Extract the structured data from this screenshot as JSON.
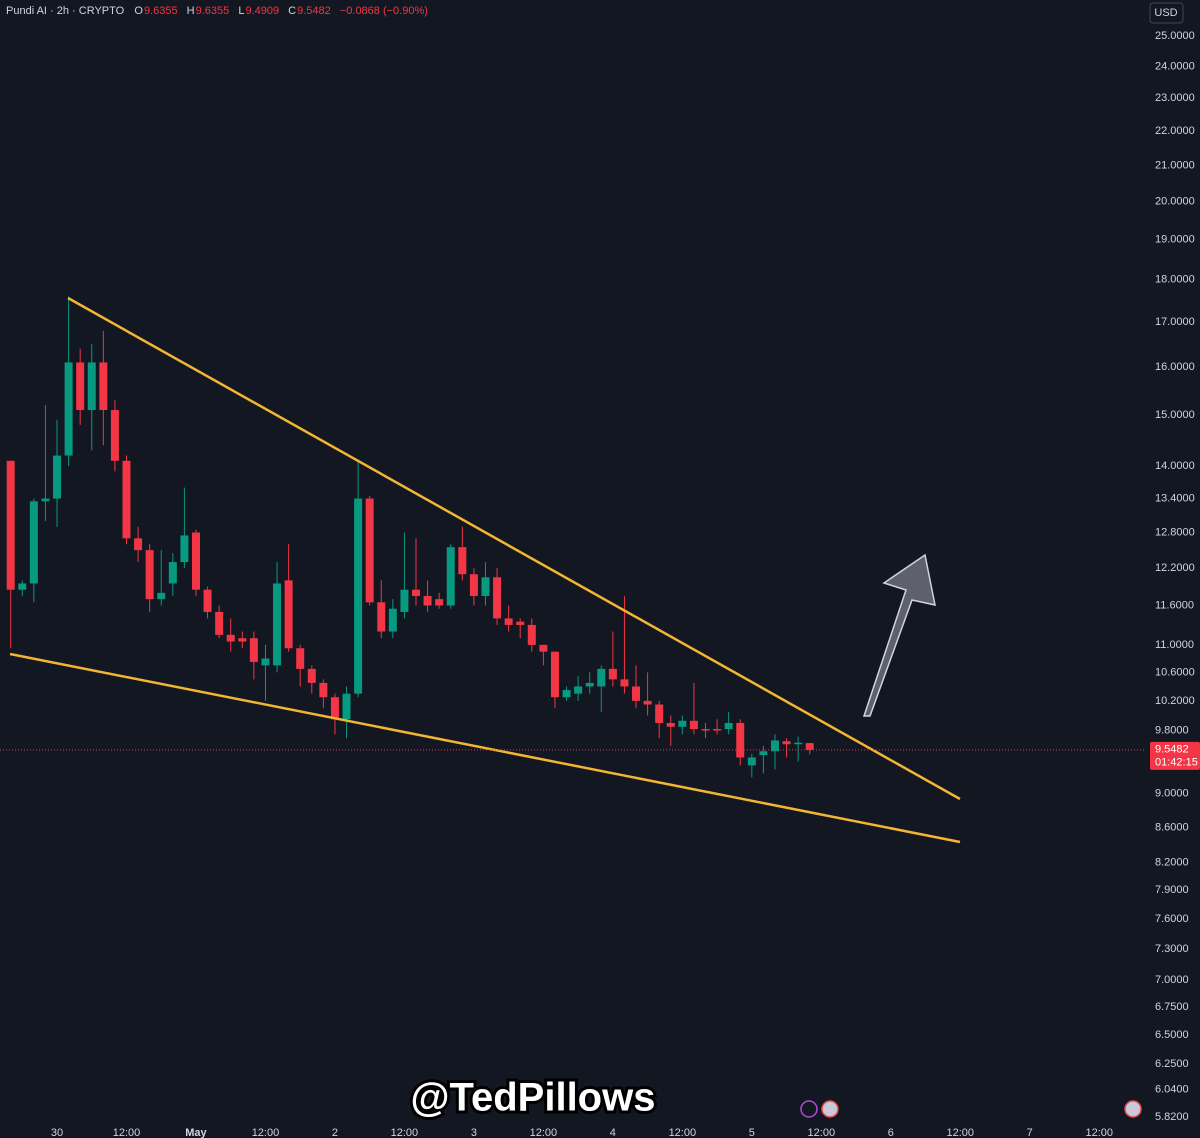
{
  "chart_data": {
    "type": "candlestick",
    "title": "Pundi AI · 2h · CRYPTO",
    "header": {
      "open_label": "O",
      "high_label": "H",
      "low_label": "L",
      "close_label": "C",
      "change": "−0.0868 (−0.90%)"
    },
    "currency": "USD",
    "countdown": "01:42:15",
    "watermark": "@TedPillows",
    "yscale": "log",
    "grid": false,
    "up_color": "#089981",
    "down_color": "#f23645",
    "ylim": [
      5.78,
      26.25
    ],
    "yticks": [
      {
        "value": 25,
        "label": "25.0000"
      },
      {
        "value": 24,
        "label": "24.0000"
      },
      {
        "value": 23,
        "label": "23.0000"
      },
      {
        "value": 22,
        "label": "22.0000"
      },
      {
        "value": 21,
        "label": "21.0000"
      },
      {
        "value": 20,
        "label": "20.0000"
      },
      {
        "value": 19,
        "label": "19.0000"
      },
      {
        "value": 18,
        "label": "18.0000"
      },
      {
        "value": 17,
        "label": "17.0000"
      },
      {
        "value": 16,
        "label": "16.0000"
      },
      {
        "value": 15,
        "label": "15.0000"
      },
      {
        "value": 14,
        "label": "14.0000"
      },
      {
        "value": 13.4,
        "label": "13.4000"
      },
      {
        "value": 12.8,
        "label": "12.8000"
      },
      {
        "value": 12.2,
        "label": "12.2000"
      },
      {
        "value": 11.6,
        "label": "11.6000"
      },
      {
        "value": 11,
        "label": "11.0000"
      },
      {
        "value": 10.6,
        "label": "10.6000"
      },
      {
        "value": 10.2,
        "label": "10.2000"
      },
      {
        "value": 9.8,
        "label": "9.8000"
      },
      {
        "value": 9,
        "label": "9.0000"
      },
      {
        "value": 8.6,
        "label": "8.6000"
      },
      {
        "value": 8.2,
        "label": "8.2000"
      },
      {
        "value": 7.9,
        "label": "7.9000"
      },
      {
        "value": 7.6,
        "label": "7.6000"
      },
      {
        "value": 7.3,
        "label": "7.3000"
      },
      {
        "value": 7,
        "label": "7.0000"
      },
      {
        "value": 6.75,
        "label": "6.7500"
      },
      {
        "value": 6.5,
        "label": "6.5000"
      },
      {
        "value": 6.25,
        "label": "6.2500"
      },
      {
        "value": 6.04,
        "label": "6.0400"
      },
      {
        "value": 5.82,
        "label": "5.8200"
      }
    ],
    "categories": [
      null,
      null,
      null,
      null,
      "30",
      null,
      null,
      null,
      null,
      null,
      "12:00",
      null,
      null,
      null,
      null,
      null,
      "May",
      null,
      null,
      null,
      null,
      null,
      "12:00",
      null,
      null,
      null,
      null,
      null,
      "2",
      null,
      null,
      null,
      null,
      null,
      "12:00",
      null,
      null,
      null,
      null,
      null,
      "3",
      null,
      null,
      null,
      null,
      null,
      "12:00",
      null,
      null,
      null,
      null,
      null,
      "4",
      null,
      null,
      null,
      null,
      null,
      "12:00",
      null,
      null,
      null,
      null,
      null,
      "5",
      null,
      null,
      null,
      null,
      null,
      "12:00",
      null,
      null,
      null,
      null,
      null,
      "6",
      null,
      null,
      null,
      null,
      null,
      "12:00",
      null,
      null,
      null,
      null,
      null,
      "7",
      null,
      null,
      null,
      null,
      null,
      "12:00"
    ],
    "open": [
      14.1,
      11.85,
      11.95,
      13.35,
      13.4,
      14.2,
      16.1,
      15.1,
      16.1,
      15.1,
      14.1,
      12.7,
      12.5,
      11.7,
      11.95,
      12.3,
      12.8,
      11.85,
      11.5,
      11.15,
      11.1,
      11.1,
      10.7,
      10.7,
      12.0,
      10.95,
      10.65,
      10.45,
      10.25,
      9.95,
      10.3,
      13.4,
      11.65,
      11.2,
      11.5,
      11.85,
      11.75,
      11.7,
      11.6,
      12.55,
      12.1,
      11.75,
      12.05,
      11.4,
      11.35,
      11.3,
      11.0,
      10.9,
      10.25,
      10.3,
      10.4,
      10.4,
      10.65,
      10.5,
      10.4,
      10.2,
      10.15,
      9.9,
      9.85,
      9.93,
      9.82,
      9.82,
      9.82,
      9.9,
      9.35,
      9.48,
      9.53,
      9.66,
      9.62,
      9.6355,
      null,
      null,
      null,
      null,
      null,
      null,
      null,
      null,
      null,
      null,
      null,
      null,
      null,
      null,
      null,
      null,
      null,
      null,
      null,
      null,
      null,
      null,
      null,
      null,
      null
    ],
    "high": [
      14.1,
      12.0,
      13.4,
      15.2,
      14.9,
      17.6,
      16.4,
      16.5,
      16.8,
      15.3,
      14.2,
      12.9,
      12.6,
      12.5,
      12.45,
      13.6,
      12.85,
      11.9,
      11.6,
      11.4,
      11.2,
      11.2,
      11.0,
      12.3,
      12.6,
      11.0,
      10.7,
      10.5,
      10.3,
      10.4,
      14.1,
      13.45,
      12.0,
      11.7,
      12.8,
      12.7,
      12.0,
      11.8,
      12.6,
      12.9,
      12.2,
      12.3,
      12.2,
      11.6,
      11.4,
      11.4,
      11.0,
      10.9,
      10.4,
      10.55,
      10.6,
      10.7,
      11.2,
      11.75,
      10.7,
      10.6,
      10.2,
      10.0,
      10.0,
      10.45,
      9.9,
      9.95,
      10.05,
      9.95,
      9.5,
      9.6,
      9.75,
      9.7,
      9.72,
      9.6355,
      null,
      null,
      null,
      null,
      null,
      null,
      null,
      null,
      null,
      null,
      null,
      null,
      null,
      null,
      null,
      null,
      null,
      null,
      null,
      null,
      null,
      null,
      null,
      null,
      null
    ],
    "low": [
      10.95,
      11.75,
      11.65,
      13.0,
      12.9,
      14.0,
      14.8,
      14.3,
      14.4,
      13.9,
      12.6,
      12.3,
      11.5,
      11.6,
      11.75,
      12.2,
      11.75,
      11.4,
      11.1,
      10.9,
      10.95,
      10.5,
      10.2,
      10.6,
      10.9,
      10.4,
      10.3,
      10.1,
      9.75,
      9.7,
      10.25,
      11.6,
      11.1,
      11.1,
      11.4,
      11.6,
      11.5,
      11.55,
      11.55,
      12.0,
      11.6,
      11.6,
      11.3,
      11.2,
      11.1,
      10.9,
      10.7,
      10.1,
      10.2,
      10.2,
      10.3,
      10.05,
      10.4,
      10.3,
      10.1,
      10.0,
      9.7,
      9.6,
      9.75,
      9.75,
      9.7,
      9.75,
      9.75,
      9.35,
      9.2,
      9.25,
      9.3,
      9.45,
      9.4,
      9.4909,
      null,
      null,
      null,
      null,
      null,
      null,
      null,
      null,
      null,
      null,
      null,
      null,
      null,
      null,
      null,
      null,
      null,
      null,
      null,
      null,
      null,
      null,
      null,
      null,
      null
    ],
    "close": [
      11.85,
      11.95,
      13.35,
      13.4,
      14.2,
      16.1,
      15.1,
      16.1,
      15.1,
      14.1,
      12.7,
      12.5,
      11.7,
      11.8,
      12.3,
      12.75,
      11.85,
      11.5,
      11.15,
      11.05,
      11.05,
      10.75,
      10.8,
      11.95,
      10.95,
      10.65,
      10.45,
      10.25,
      9.95,
      10.3,
      13.4,
      11.65,
      11.2,
      11.55,
      11.85,
      11.75,
      11.6,
      11.6,
      12.55,
      12.1,
      11.75,
      12.05,
      11.4,
      11.3,
      11.3,
      11.0,
      10.9,
      10.25,
      10.35,
      10.4,
      10.45,
      10.65,
      10.5,
      10.4,
      10.2,
      10.15,
      9.9,
      9.85,
      9.93,
      9.82,
      9.8,
      9.8,
      9.9,
      9.45,
      9.45,
      9.53,
      9.67,
      9.62,
      9.64,
      9.5482,
      null,
      null,
      null,
      null,
      null,
      null,
      null,
      null,
      null,
      null,
      null,
      null,
      null,
      null,
      null,
      null,
      null,
      null,
      null,
      null,
      null,
      null,
      null,
      null,
      null
    ]
  }
}
